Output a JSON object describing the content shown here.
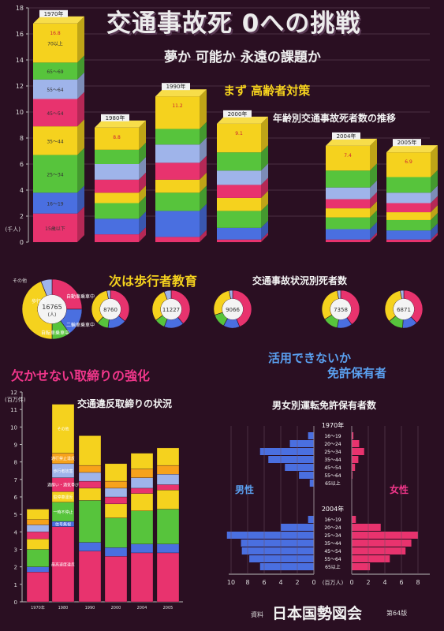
{
  "title": "交通事故死 0への挑戦",
  "subtitle": "夢か 可能か 永遠の課題か",
  "sections": {
    "elderly": "まず 高齢者対策",
    "elderly_sub": "年齢別交通事故死者数の推移",
    "pedestrian": "次は歩行者教育",
    "pedestrian_sub": "交通事故状況別死者数",
    "enforcement": "欠かせない取締りの強化",
    "enforcement_sub": "交通違反取締りの状況",
    "license_q1": "活用できないか",
    "license_q2": "免許保有者",
    "license_sub": "男女別運転免許保有者数"
  },
  "source": {
    "label": "資料",
    "name": "日本国勢図会",
    "edition": "第64版"
  },
  "colors": {
    "bg": "#2a0f22",
    "pink": "#e8336e",
    "blue": "#4a6fe0",
    "green": "#57c43c",
    "yellow": "#f5d21e",
    "lavender": "#9fb4ea",
    "orange": "#f7a21b"
  },
  "chart_data": [
    {
      "type": "bar",
      "stacked": true,
      "style": "3d",
      "categories": [
        "1970年",
        "1980年",
        "1990年",
        "2000年",
        "2004年",
        "2005年"
      ],
      "ylabel": "(千人)",
      "ylim": [
        0,
        18
      ],
      "yticks": [
        0,
        2,
        4,
        6,
        8,
        10,
        12,
        14,
        16,
        18
      ],
      "segment_labels": [
        "15歳以下",
        "16～19",
        "25～34",
        "35～44",
        "45～54",
        "55～64",
        "65～69",
        "70以上"
      ],
      "totals": [
        16.8,
        8.8,
        11.2,
        9.1,
        7.4,
        6.9
      ],
      "stack_colors": [
        "#e8336e",
        "#4a6fe0",
        "#57c43c",
        "#f5d21e",
        "#e8336e",
        "#9fb4ea",
        "#57c43c",
        "#f5d21e"
      ],
      "series": [
        {
          "values": [
            2.2,
            0.6,
            0.4,
            0.2,
            0.2,
            0.2
          ]
        },
        {
          "values": [
            1.6,
            1.2,
            2.0,
            0.9,
            0.8,
            0.7
          ]
        },
        {
          "values": [
            2.9,
            1.2,
            1.4,
            1.3,
            0.9,
            0.8
          ]
        },
        {
          "values": [
            2.2,
            0.8,
            1.0,
            1.0,
            0.7,
            0.6
          ]
        },
        {
          "values": [
            2.1,
            1.0,
            1.3,
            1.0,
            0.7,
            0.7
          ]
        },
        {
          "values": [
            1.5,
            1.2,
            1.4,
            1.1,
            0.9,
            0.8
          ]
        },
        {
          "values": [
            1.3,
            1.1,
            1.2,
            1.4,
            1.3,
            1.2
          ]
        },
        {
          "values": [
            3.0,
            1.7,
            2.5,
            2.2,
            1.9,
            1.9
          ]
        }
      ]
    },
    {
      "type": "pie",
      "style": "donut",
      "categories": [
        "1970",
        "1980",
        "1990",
        "2000",
        "2004",
        "2005"
      ],
      "totals": [
        16765,
        8760,
        11227,
        9066,
        7358,
        6871
      ],
      "total_unit": "(人)",
      "slice_labels": [
        "自動車乗車中",
        "二輪車乗車中",
        "自転車乗車中",
        "歩行中",
        "その他"
      ],
      "slice_colors": [
        "#e8336e",
        "#4a6fe0",
        "#57c43c",
        "#f5d21e",
        "#9fb4ea"
      ],
      "shares": [
        [
          0.25,
          0.15,
          0.1,
          0.44,
          0.06
        ],
        [
          0.36,
          0.16,
          0.1,
          0.35,
          0.03
        ],
        [
          0.39,
          0.17,
          0.09,
          0.29,
          0.06
        ],
        [
          0.44,
          0.14,
          0.12,
          0.27,
          0.03
        ],
        [
          0.4,
          0.13,
          0.13,
          0.31,
          0.03
        ],
        [
          0.38,
          0.13,
          0.13,
          0.33,
          0.03
        ]
      ]
    },
    {
      "type": "bar",
      "stacked": true,
      "categories": [
        "1970年",
        "1980",
        "1990",
        "2000",
        "2004",
        "2005"
      ],
      "ylabel": "(百万件)",
      "ylim": [
        0,
        12
      ],
      "yticks": [
        0,
        1,
        2,
        3,
        4,
        5,
        6,
        7,
        8,
        9,
        10,
        11,
        12
      ],
      "segment_labels": [
        "最高速度違反",
        "信号無視",
        "一時不停止",
        "駐停車違反",
        "酒酔い・酒気帯び",
        "歩行者妨害",
        "通行禁止違反",
        "その他"
      ],
      "stack_colors": [
        "#e8336e",
        "#4a6fe0",
        "#57c43c",
        "#f5d21e",
        "#e8336e",
        "#9fb4ea",
        "#f7a21b",
        "#f5d21e"
      ],
      "series": [
        {
          "values": [
            1.7,
            4.3,
            2.9,
            2.6,
            2.8,
            2.8
          ]
        },
        {
          "values": [
            0.3,
            0.3,
            0.5,
            0.5,
            0.5,
            0.5
          ]
        },
        {
          "values": [
            1.0,
            1.1,
            2.4,
            1.7,
            1.9,
            2.0
          ]
        },
        {
          "values": [
            0.6,
            0.6,
            0.7,
            0.8,
            1.0,
            1.1
          ]
        },
        {
          "values": [
            0.4,
            0.8,
            0.4,
            0.4,
            0.3,
            0.3
          ]
        },
        {
          "values": [
            0.4,
            0.8,
            0.5,
            0.5,
            0.6,
            0.6
          ]
        },
        {
          "values": [
            0.3,
            0.6,
            0.4,
            0.4,
            0.5,
            0.5
          ]
        },
        {
          "values": [
            0.6,
            2.8,
            1.7,
            1.0,
            0.9,
            1.0
          ]
        }
      ]
    },
    {
      "type": "bar",
      "orientation": "horizontal",
      "title_groups": [
        "1970年",
        "2004年"
      ],
      "age_groups": [
        "16～19",
        "20～24",
        "25～34",
        "35～44",
        "45～54",
        "55～64",
        "65以上"
      ],
      "series": [
        {
          "name": "男性",
          "values_1970": [
            0.7,
            2.9,
            6.5,
            5.5,
            3.5,
            1.8,
            0.5
          ],
          "values_2004": [
            0.7,
            4.0,
            10.5,
            8.8,
            8.7,
            7.8,
            6.5
          ]
        },
        {
          "name": "女性",
          "values_1970": [
            0.2,
            0.9,
            1.5,
            0.8,
            0.4,
            0.1,
            0.0
          ],
          "values_2004": [
            0.5,
            3.5,
            8.0,
            7.2,
            6.5,
            4.6,
            2.2
          ]
        }
      ],
      "xlabel": "(百万人)",
      "xticks_left": [
        10,
        8,
        6,
        4,
        2,
        0
      ],
      "xticks_right": [
        0,
        2,
        4,
        6,
        8
      ]
    }
  ]
}
